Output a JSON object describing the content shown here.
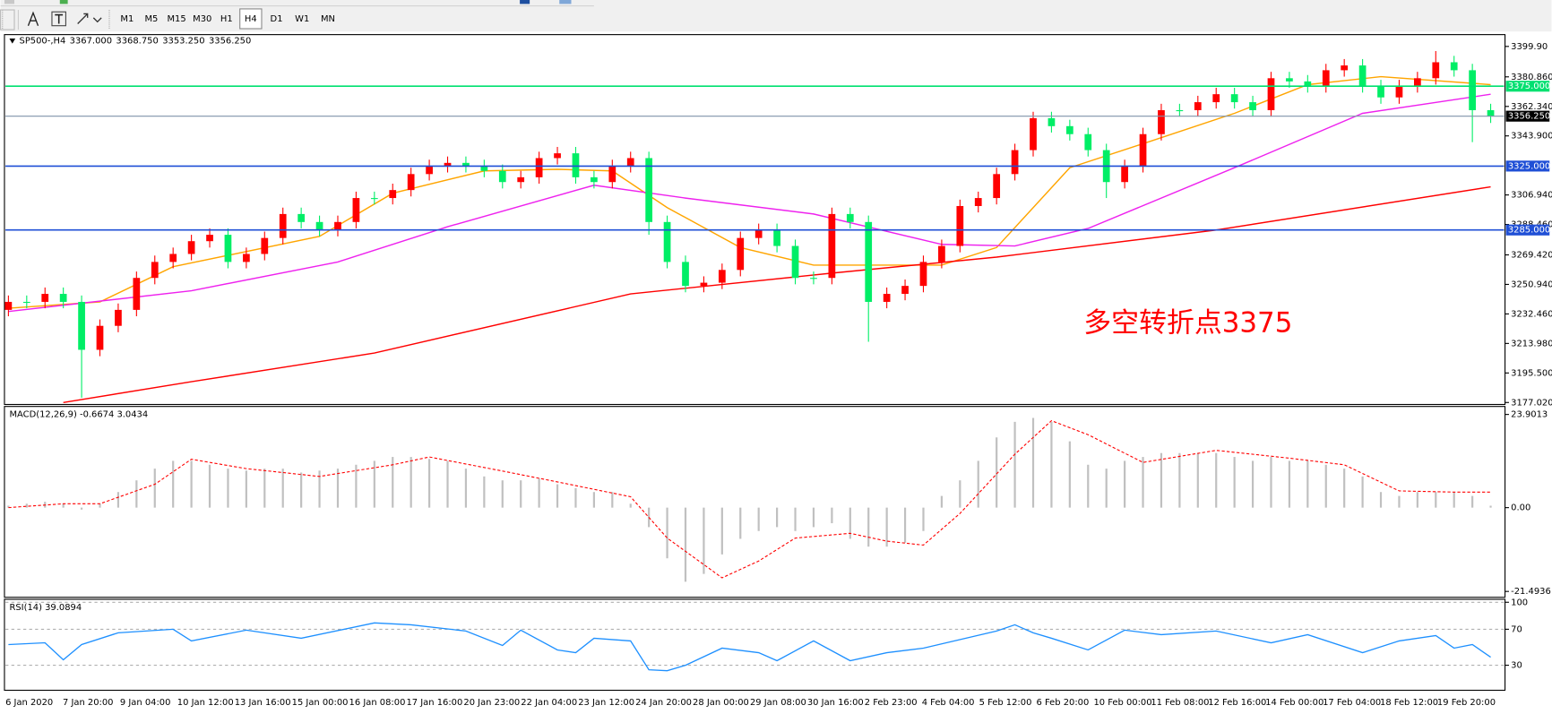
{
  "toolbar": {
    "timeframes": [
      "M1",
      "M5",
      "M15",
      "M30",
      "H1",
      "H4",
      "D1",
      "W1",
      "MN"
    ],
    "active_index": 5
  },
  "time_axis": [
    "6 Jan 2020",
    "7 Jan 20:00",
    "9 Jan 04:00",
    "10 Jan 12:00",
    "13 Jan 16:00",
    "15 Jan 00:00",
    "16 Jan 08:00",
    "17 Jan 16:00",
    "20 Jan 23:00",
    "22 Jan 04:00",
    "23 Jan 12:00",
    "24 Jan 20:00",
    "28 Jan 00:00",
    "29 Jan 08:00",
    "30 Jan 16:00",
    "2 Feb 23:00",
    "4 Feb 04:00",
    "5 Feb 12:00",
    "6 Feb 20:00",
    "10 Feb 00:00",
    "11 Feb 08:00",
    "12 Feb 16:00",
    "14 Feb 00:00",
    "17 Feb 04:00",
    "18 Feb 12:00",
    "19 Feb 20:00"
  ],
  "chart_data": [
    {
      "type": "candlestick",
      "title": "SP500-,H4",
      "header_values": [
        "3367.000",
        "3368.750",
        "3353.250",
        "3356.250"
      ],
      "open": [
        3235,
        3240,
        3240,
        3245,
        3240,
        3210,
        3225,
        3235,
        3255,
        3265,
        3270,
        3278,
        3282,
        3265,
        3270,
        3280,
        3295,
        3290,
        3285,
        3290,
        3305,
        3305,
        3310,
        3320,
        3325,
        3327,
        3325,
        3322,
        3315,
        3318,
        3330,
        3333,
        3318,
        3315,
        3325,
        3330,
        3290,
        3265,
        3250,
        3252,
        3260,
        3280,
        3285,
        3275,
        3255,
        3255,
        3295,
        3290,
        3240,
        3245,
        3250,
        3265,
        3275,
        3300,
        3305,
        3320,
        3335,
        3355,
        3350,
        3345,
        3335,
        3315,
        3325,
        3345,
        3360,
        3360,
        3365,
        3370,
        3365,
        3360,
        3380,
        3378,
        3375,
        3385,
        3388,
        3375,
        3368,
        3375,
        3380,
        3390,
        3385,
        3360
      ],
      "high": [
        3244,
        3244,
        3249,
        3249,
        3244,
        3229,
        3239,
        3259,
        3269,
        3274,
        3282,
        3286,
        3286,
        3274,
        3284,
        3299,
        3299,
        3294,
        3294,
        3309,
        3309,
        3314,
        3324,
        3329,
        3331,
        3331,
        3329,
        3326,
        3322,
        3334,
        3337,
        3337,
        3322,
        3329,
        3334,
        3334,
        3294,
        3269,
        3256,
        3264,
        3284,
        3289,
        3289,
        3279,
        3259,
        3299,
        3299,
        3294,
        3249,
        3254,
        3269,
        3279,
        3304,
        3309,
        3324,
        3339,
        3359,
        3359,
        3354,
        3349,
        3339,
        3329,
        3349,
        3364,
        3364,
        3369,
        3374,
        3374,
        3369,
        3384,
        3384,
        3382,
        3389,
        3392,
        3392,
        3379,
        3379,
        3384,
        3397,
        3394,
        3389,
        3364
      ],
      "low": [
        3231,
        3236,
        3236,
        3236,
        3180,
        3206,
        3221,
        3231,
        3251,
        3261,
        3266,
        3274,
        3261,
        3261,
        3266,
        3276,
        3286,
        3281,
        3281,
        3286,
        3301,
        3301,
        3306,
        3316,
        3321,
        3321,
        3318,
        3311,
        3311,
        3314,
        3326,
        3314,
        3311,
        3311,
        3321,
        3282,
        3261,
        3246,
        3246,
        3248,
        3256,
        3276,
        3271,
        3251,
        3251,
        3251,
        3286,
        3215,
        3236,
        3241,
        3246,
        3261,
        3271,
        3296,
        3301,
        3316,
        3331,
        3346,
        3341,
        3331,
        3305,
        3311,
        3321,
        3341,
        3356,
        3356,
        3361,
        3361,
        3356,
        3356,
        3374,
        3371,
        3371,
        3381,
        3371,
        3364,
        3364,
        3371,
        3376,
        3381,
        3340,
        3352
      ],
      "close": [
        3240,
        3240,
        3245,
        3240,
        3210,
        3225,
        3235,
        3255,
        3265,
        3270,
        3278,
        3282,
        3265,
        3270,
        3280,
        3295,
        3290,
        3285,
        3290,
        3305,
        3305,
        3310,
        3320,
        3325,
        3327,
        3325,
        3322,
        3315,
        3318,
        3330,
        3333,
        3318,
        3315,
        3325,
        3330,
        3290,
        3265,
        3250,
        3252,
        3260,
        3280,
        3285,
        3275,
        3255,
        3255,
        3295,
        3290,
        3240,
        3245,
        3250,
        3265,
        3275,
        3300,
        3305,
        3320,
        3335,
        3355,
        3350,
        3345,
        3335,
        3315,
        3325,
        3345,
        3360,
        3360,
        3365,
        3370,
        3365,
        3360,
        3380,
        3378,
        3375,
        3385,
        3388,
        3375,
        3368,
        3375,
        3380,
        3390,
        3385,
        3360,
        3356.25
      ],
      "up_color": "#ff0000",
      "down_color": "#00ee66",
      "overlays": [
        {
          "color": "#ffa500",
          "x": [
            0,
            5,
            9,
            17,
            21,
            26,
            30,
            33,
            36,
            40,
            44,
            48,
            51,
            54,
            58,
            62,
            67,
            71,
            75,
            81
          ],
          "values": [
            3236,
            3240,
            3262,
            3281,
            3308,
            3322,
            3323,
            3322,
            3299,
            3274,
            3263,
            3263,
            3263,
            3274,
            3324,
            3339,
            3358,
            3376,
            3381,
            3376
          ]
        },
        {
          "color": "#ee22ee",
          "x": [
            0,
            10,
            18,
            24,
            32,
            37,
            44,
            51,
            55,
            59,
            67,
            74,
            81
          ],
          "values": [
            3234,
            3247,
            3265,
            3287,
            3313,
            3305,
            3295,
            3276,
            3275,
            3286,
            3324,
            3358,
            3370
          ]
        },
        {
          "color": "#ff0000",
          "x": [
            3,
            10,
            20,
            34,
            45,
            54,
            66,
            81
          ],
          "values": [
            3177,
            3190,
            3208,
            3245,
            3258,
            3268,
            3285,
            3312
          ]
        }
      ],
      "hlines": [
        {
          "value": 3375,
          "label": "3375.000",
          "color": "#00e070"
        },
        {
          "value": 3356.25,
          "label": "3356.250",
          "color": "#7f93aa",
          "label_color": "#000000"
        },
        {
          "value": 3325,
          "label": "3325.000",
          "color": "#1f4fd6"
        },
        {
          "value": 3285,
          "label": "3285.000",
          "color": "#1f4fd6"
        }
      ],
      "annotation": "多空转折点3375",
      "annotation_color": "#ff0000",
      "ylim": [
        3176.4,
        3407.3
      ],
      "yticks": [
        {
          "value": 3399.9,
          "label": "3399.90"
        },
        {
          "value": 3380.86,
          "label": "3380.860"
        },
        {
          "value": 3362.34,
          "label": "3362.340"
        },
        {
          "value": 3343.9,
          "label": "3343.900"
        },
        {
          "value": 3306.94,
          "label": "3306.940"
        },
        {
          "value": 3288.46,
          "label": "3288.460"
        },
        {
          "value": 3269.42,
          "label": "3269.420"
        },
        {
          "value": 3250.94,
          "label": "3250.940"
        },
        {
          "value": 3232.46,
          "label": "3232.460"
        },
        {
          "value": 3213.98,
          "label": "3213.980"
        },
        {
          "value": 3195.5,
          "label": "3195.500"
        },
        {
          "value": 3177.02,
          "label": "3177.020"
        }
      ],
      "grid": false
    },
    {
      "type": "macd",
      "title": "MACD(12,26,9) -0.6674 3.0434",
      "values": [
        0.5,
        1,
        1.5,
        1,
        -0.5,
        1,
        4,
        7,
        10,
        12,
        12,
        11,
        10,
        9.5,
        10,
        10,
        9,
        9.5,
        10,
        11,
        12,
        13,
        13,
        12.5,
        12,
        10,
        8,
        7,
        7,
        7.5,
        6,
        5,
        4,
        4,
        1,
        -5,
        -13,
        -19,
        -17,
        -12,
        -8,
        -6,
        -5,
        -6,
        -5,
        -4,
        -8,
        -10,
        -10,
        -9,
        -6,
        3,
        7,
        12,
        18,
        22,
        23,
        22,
        17,
        11,
        10,
        12,
        13,
        14,
        14,
        14,
        14,
        13,
        12,
        13,
        12,
        12,
        11,
        10,
        8,
        4,
        3,
        4,
        4,
        4,
        3,
        0.5
      ],
      "color": "#c0c0c0",
      "signal": {
        "color": "#ff0000",
        "x": [
          0,
          3,
          5,
          8,
          10,
          13,
          17,
          21,
          23,
          27,
          30,
          34,
          36,
          39,
          41,
          43,
          46,
          48,
          50,
          52,
          55,
          57,
          59,
          62,
          66,
          70,
          73,
          76,
          79,
          81
        ],
        "values": [
          0,
          1,
          1,
          6,
          12.4,
          10,
          8,
          11,
          13,
          9.4,
          6.6,
          2.8,
          -7.8,
          -18,
          -13.7,
          -7.8,
          -6.6,
          -8.6,
          -9.6,
          -1.5,
          13.7,
          22.3,
          18.7,
          11.6,
          14.7,
          12.7,
          11,
          4.3,
          4,
          4
        ]
      },
      "ylim": [
        -23,
        25.7
      ],
      "yticks": [
        23.9013,
        {
          "value": 0,
          "label": "0.00"
        },
        -21.4936
      ],
      "grid": false
    },
    {
      "type": "line",
      "title": "RSI(14) 39.0894",
      "x": [
        0,
        2,
        3,
        4,
        6,
        9,
        10,
        13,
        16,
        20,
        22,
        25,
        27,
        28,
        30,
        31,
        32,
        34,
        35,
        36,
        37,
        39,
        41,
        42,
        44,
        46,
        48,
        50,
        54,
        55,
        56,
        57,
        59,
        61,
        63,
        66,
        69,
        71,
        74,
        76,
        78,
        79,
        80,
        81
      ],
      "values": [
        53,
        55,
        36,
        53,
        66,
        70,
        57,
        69,
        60,
        77,
        75,
        68,
        52,
        69,
        47,
        44,
        60,
        57,
        25,
        24,
        30,
        49,
        44,
        35,
        57,
        35,
        44,
        49,
        68,
        75,
        66,
        60,
        47,
        69,
        64,
        68,
        55,
        64,
        44,
        57,
        63,
        49,
        53,
        39
      ],
      "color": "#1e90ff",
      "ylim": [
        0,
        100
      ],
      "yticks": [
        100,
        70,
        30
      ],
      "grid": true
    }
  ]
}
